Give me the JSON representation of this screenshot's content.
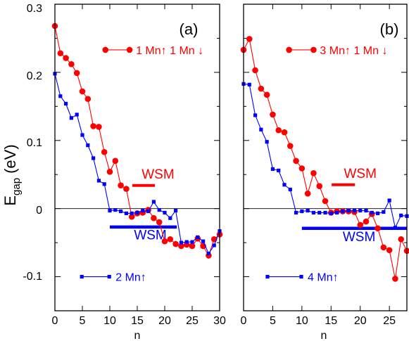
{
  "figure": {
    "ylabel": "E",
    "ylabel_sub": "gap",
    "ylabel_unit": "(eV)",
    "xlabel": "n",
    "yticks": [
      "-0.1",
      "0",
      "0.1",
      "0.2",
      "0.3"
    ]
  },
  "chart_data": [
    {
      "type": "line",
      "panel_label": "(a)",
      "xlim": [
        0,
        30
      ],
      "ylim": [
        -0.15,
        0.3
      ],
      "xticks": [
        0,
        5,
        10,
        15,
        20,
        25,
        30
      ],
      "yticks": [
        -0.1,
        0,
        0.1,
        0.2,
        0.3
      ],
      "zero_line": true,
      "series": [
        {
          "name": "1 Mn↑ 1 Mn ↓",
          "color": "#ff0000",
          "marker": "circle",
          "x": [
            0,
            1,
            2,
            3,
            4,
            5,
            6,
            7,
            8,
            9,
            10,
            11,
            12,
            13,
            14,
            15,
            16,
            17,
            18,
            19,
            20,
            21,
            22,
            23,
            24,
            25,
            26,
            27,
            28,
            29,
            30
          ],
          "y": [
            0.268,
            0.228,
            0.221,
            0.212,
            0.199,
            0.172,
            0.161,
            0.121,
            0.12,
            0.083,
            0.054,
            0.07,
            0.034,
            0.029,
            -0.012,
            -0.007,
            -0.006,
            -0.002,
            -0.014,
            -0.02,
            -0.048,
            -0.045,
            -0.052,
            -0.055,
            -0.053,
            -0.055,
            -0.044,
            -0.055,
            -0.069,
            -0.045,
            -0.038
          ]
        },
        {
          "name": "2 Mn↑",
          "color": "#0000ff",
          "marker": "square",
          "x": [
            0,
            1,
            2,
            3,
            4,
            5,
            6,
            7,
            8,
            9,
            10,
            11,
            12,
            13,
            14,
            15,
            16,
            17,
            18,
            19,
            20,
            21,
            22,
            23,
            24,
            25,
            26,
            27,
            28,
            29,
            30
          ],
          "y": [
            0.198,
            0.165,
            0.154,
            0.133,
            0.138,
            0.108,
            0.093,
            0.074,
            0.041,
            0.036,
            -0.003,
            -0.002,
            -0.004,
            -0.007,
            -0.007,
            -0.006,
            -0.003,
            -0.004,
            0.01,
            -0.002,
            -0.006,
            -0.014,
            -0.003,
            -0.05,
            -0.049,
            -0.049,
            -0.042,
            -0.048,
            -0.066,
            -0.054,
            -0.033
          ]
        }
      ],
      "annotations": [
        {
          "text": "WSM",
          "color": "#ff0000",
          "x": 15.8,
          "y": 0.044,
          "bar": [
            14.1,
            18.2
          ],
          "bar_y": 0.034
        },
        {
          "text": "WSM",
          "color": "#0000ff",
          "x": 14.4,
          "y": -0.045,
          "bar": [
            10,
            22.2
          ],
          "bar_y": -0.027
        }
      ],
      "legend": [
        {
          "series": 0,
          "text": "1 Mn↑ 1 Mn ↓",
          "color": "#ff0000",
          "marker": "circle",
          "line": [
            9.2,
            13.6
          ],
          "y": 0.233
        },
        {
          "series": 1,
          "text": "2 Mn↑",
          "color": "#0000ff",
          "marker": "square",
          "line": [
            4.9,
            9.9
          ],
          "y": -0.1
        }
      ]
    },
    {
      "type": "line",
      "panel_label": "(b)",
      "xlim": [
        0,
        28
      ],
      "ylim": [
        -0.15,
        0.3
      ],
      "xticks": [
        0,
        5,
        10,
        15,
        20,
        25
      ],
      "yticks": [
        -0.1,
        0,
        0.1,
        0.2,
        0.3
      ],
      "zero_line": true,
      "series": [
        {
          "name": "3 Mn↑ 1 Mn ↓",
          "color": "#ff0000",
          "marker": "circle",
          "x": [
            0,
            1,
            2,
            3,
            4,
            5,
            6,
            7,
            8,
            9,
            10,
            11,
            12,
            13,
            14,
            15,
            16,
            17,
            18,
            19,
            20,
            21,
            22,
            23,
            24,
            25,
            26,
            27,
            28
          ],
          "y": [
            0.233,
            0.249,
            0.203,
            0.176,
            0.167,
            0.138,
            0.115,
            0.112,
            0.092,
            0.07,
            0.059,
            0.022,
            0.052,
            0.033,
            0.011,
            -0.006,
            -0.004,
            -0.004,
            -0.004,
            -0.005,
            -0.024,
            -0.019,
            -0.008,
            -0.029,
            -0.057,
            -0.061,
            -0.103,
            -0.045,
            -0.062
          ]
        },
        {
          "name": "4 Mn↑",
          "color": "#0000ff",
          "marker": "square",
          "x": [
            0,
            1,
            2,
            3,
            4,
            5,
            6,
            7,
            8,
            9,
            10,
            11,
            12,
            13,
            14,
            15,
            16,
            17,
            18,
            19,
            20,
            21,
            22,
            23,
            24,
            25,
            26,
            27,
            28
          ],
          "y": [
            0.183,
            0.182,
            0.137,
            0.116,
            0.098,
            0.058,
            0.056,
            0.035,
            0.028,
            -0.006,
            -0.004,
            -0.003,
            -0.006,
            -0.006,
            -0.006,
            -0.007,
            -0.006,
            -0.004,
            -0.003,
            -0.003,
            -0.003,
            -0.003,
            -0.006,
            -0.007,
            -0.005,
            0.012,
            -0.028,
            -0.01,
            -0.011
          ]
        }
      ],
      "annotations": [
        {
          "text": "WSM",
          "color": "#ff0000",
          "x": 17.2,
          "y": 0.045,
          "bar": [
            15.1,
            19.1
          ],
          "bar_y": 0.035
        },
        {
          "text": "WSM",
          "color": "#0000ff",
          "x": 17,
          "y": -0.048,
          "bar": [
            10,
            28
          ],
          "bar_y": -0.029
        }
      ],
      "legend": [
        {
          "series": 0,
          "text": "3 Mn↑ 1 Mn ↓",
          "color": "#ff0000",
          "marker": "circle",
          "line": [
            7.8,
            12
          ],
          "y": 0.233
        },
        {
          "series": 1,
          "text": "4 Mn↑",
          "color": "#0000ff",
          "marker": "square",
          "line": [
            4.1,
            9.9
          ],
          "y": -0.1
        }
      ]
    }
  ]
}
